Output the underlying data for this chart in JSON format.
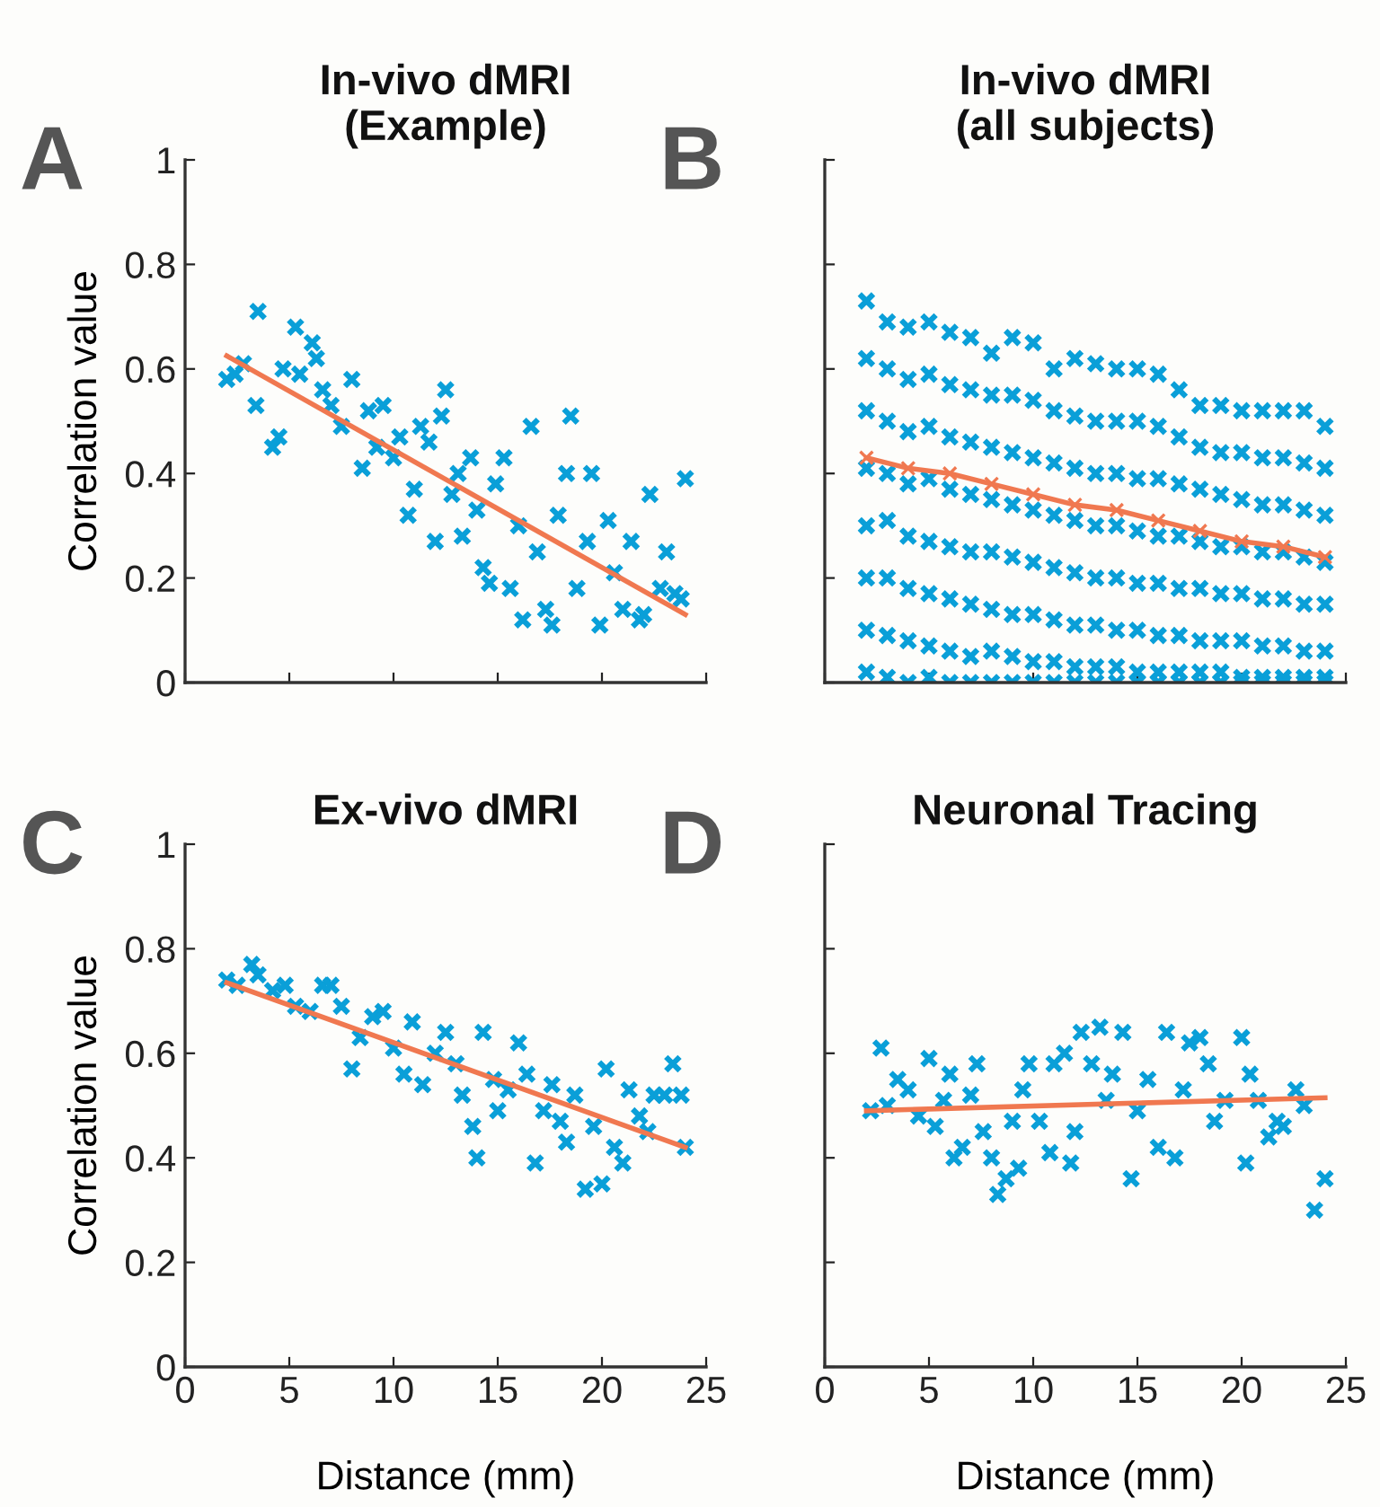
{
  "chart_data": [
    {
      "type": "scatter",
      "title": "In-vivo dMRI\n(Example)",
      "ylabel": "Correlation value",
      "annotations": [
        "A"
      ],
      "xlim": [
        0,
        25
      ],
      "ylim": [
        0,
        1
      ],
      "xticks": [
        0,
        5,
        10,
        15,
        20,
        25
      ],
      "yticks": [
        0,
        0.2,
        0.4,
        0.6,
        0.8,
        1
      ],
      "tick_labels": "y",
      "grid": false,
      "series": [
        {
          "marker": "cross",
          "color": "#0a9fd8",
          "x": [
            2.0,
            2.4,
            2.8,
            3.4,
            3.5,
            4.2,
            4.5,
            4.7,
            5.3,
            5.5,
            6.1,
            6.3,
            6.6,
            7.0,
            7.5,
            8.0,
            8.5,
            8.8,
            9.2,
            9.5,
            10.0,
            10.3,
            10.7,
            11.0,
            11.3,
            11.7,
            12.0,
            12.3,
            12.5,
            12.8,
            13.1,
            13.3,
            13.7,
            14.0,
            14.3,
            14.6,
            14.9,
            15.3,
            15.6,
            16.0,
            16.2,
            16.6,
            16.9,
            17.3,
            17.6,
            17.9,
            18.3,
            18.5,
            18.8,
            19.3,
            19.5,
            19.9,
            20.3,
            20.6,
            21.0,
            21.4,
            21.8,
            22.0,
            22.3,
            22.8,
            23.1,
            23.5,
            24.0,
            23.8
          ],
          "values": [
            0.58,
            0.59,
            0.61,
            0.53,
            0.71,
            0.45,
            0.47,
            0.6,
            0.68,
            0.59,
            0.65,
            0.62,
            0.56,
            0.53,
            0.49,
            0.58,
            0.41,
            0.52,
            0.45,
            0.53,
            0.43,
            0.47,
            0.32,
            0.37,
            0.49,
            0.46,
            0.27,
            0.51,
            0.56,
            0.36,
            0.4,
            0.28,
            0.43,
            0.33,
            0.22,
            0.19,
            0.38,
            0.43,
            0.18,
            0.3,
            0.12,
            0.49,
            0.25,
            0.14,
            0.11,
            0.32,
            0.4,
            0.51,
            0.18,
            0.27,
            0.4,
            0.11,
            0.31,
            0.21,
            0.14,
            0.27,
            0.12,
            0.13,
            0.36,
            0.18,
            0.25,
            0.17,
            0.39,
            0.16
          ]
        },
        {
          "type": "line",
          "marker": "none",
          "color": "#f07850",
          "x": [
            2,
            24
          ],
          "values": [
            0.625,
            0.13
          ]
        }
      ]
    },
    {
      "type": "scatter",
      "title": "In-vivo dMRI\n(all subjects)",
      "annotations": [
        "B"
      ],
      "xlim": [
        0,
        25
      ],
      "ylim": [
        0,
        1
      ],
      "xticks": [
        0,
        5,
        10,
        15,
        20,
        25
      ],
      "yticks": [
        0,
        0.2,
        0.4,
        0.6,
        0.8,
        1
      ],
      "tick_labels": false,
      "grid": false,
      "series": [
        {
          "marker": "cross",
          "color": "#0a9fd8",
          "x": [
            2,
            2,
            2,
            2,
            2,
            2,
            2,
            2,
            3,
            3,
            3,
            3,
            3,
            3,
            3,
            3,
            4,
            4,
            4,
            4,
            4,
            4,
            4,
            4,
            5,
            5,
            5,
            5,
            5,
            5,
            5,
            5,
            6,
            6,
            6,
            6,
            6,
            6,
            6,
            6,
            7,
            7,
            7,
            7,
            7,
            7,
            7,
            7,
            8,
            8,
            8,
            8,
            8,
            8,
            8,
            8,
            9,
            9,
            9,
            9,
            9,
            9,
            9,
            9,
            10,
            10,
            10,
            10,
            10,
            10,
            10,
            10,
            11,
            11,
            11,
            11,
            11,
            11,
            11,
            11,
            12,
            12,
            12,
            12,
            12,
            12,
            12,
            12,
            13,
            13,
            13,
            13,
            13,
            13,
            13,
            13,
            14,
            14,
            14,
            14,
            14,
            14,
            14,
            14,
            15,
            15,
            15,
            15,
            15,
            15,
            15,
            15,
            16,
            16,
            16,
            16,
            16,
            16,
            16,
            16,
            17,
            17,
            17,
            17,
            17,
            17,
            17,
            17,
            18,
            18,
            18,
            18,
            18,
            18,
            18,
            18,
            19,
            19,
            19,
            19,
            19,
            19,
            19,
            19,
            20,
            20,
            20,
            20,
            20,
            20,
            20,
            20,
            21,
            21,
            21,
            21,
            21,
            21,
            21,
            21,
            22,
            22,
            22,
            22,
            22,
            22,
            22,
            22,
            23,
            23,
            23,
            23,
            23,
            23,
            23,
            23,
            24,
            24,
            24,
            24,
            24,
            24,
            24,
            24
          ],
          "values": [
            0.73,
            0.62,
            0.52,
            0.41,
            0.3,
            0.2,
            0.1,
            0.02,
            0.69,
            0.6,
            0.5,
            0.4,
            0.31,
            0.2,
            0.09,
            0.01,
            0.68,
            0.58,
            0.48,
            0.38,
            0.28,
            0.18,
            0.08,
            0.0,
            0.69,
            0.59,
            0.49,
            0.39,
            0.27,
            0.17,
            0.07,
            0.01,
            0.67,
            0.57,
            0.47,
            0.37,
            0.26,
            0.16,
            0.06,
            0.0,
            0.66,
            0.56,
            0.46,
            0.36,
            0.25,
            0.15,
            0.05,
            0.0,
            0.63,
            0.55,
            0.45,
            0.35,
            0.25,
            0.14,
            0.06,
            0.0,
            0.66,
            0.55,
            0.44,
            0.34,
            0.24,
            0.13,
            0.05,
            0.0,
            0.65,
            0.54,
            0.43,
            0.33,
            0.23,
            0.13,
            0.04,
            0.0,
            0.6,
            0.52,
            0.42,
            0.32,
            0.22,
            0.12,
            0.04,
            0.0,
            0.62,
            0.51,
            0.41,
            0.31,
            0.21,
            0.11,
            0.03,
            0.0,
            0.61,
            0.5,
            0.4,
            0.3,
            0.2,
            0.11,
            0.03,
            0.0,
            0.6,
            0.5,
            0.4,
            0.3,
            0.2,
            0.1,
            0.03,
            0.0,
            0.6,
            0.5,
            0.39,
            0.29,
            0.19,
            0.1,
            0.02,
            0.0,
            0.59,
            0.49,
            0.39,
            0.28,
            0.19,
            0.09,
            0.02,
            0.0,
            0.56,
            0.47,
            0.38,
            0.28,
            0.18,
            0.09,
            0.02,
            0.0,
            0.53,
            0.45,
            0.37,
            0.27,
            0.18,
            0.08,
            0.02,
            0.0,
            0.53,
            0.44,
            0.36,
            0.26,
            0.17,
            0.08,
            0.02,
            0.0,
            0.52,
            0.44,
            0.35,
            0.26,
            0.17,
            0.08,
            0.01,
            0.0,
            0.52,
            0.43,
            0.34,
            0.25,
            0.16,
            0.07,
            0.01,
            0.0,
            0.52,
            0.43,
            0.34,
            0.25,
            0.16,
            0.07,
            0.01,
            0.0,
            0.52,
            0.42,
            0.33,
            0.24,
            0.15,
            0.06,
            0.01,
            0.0,
            0.49,
            0.41,
            0.32,
            0.23,
            0.15,
            0.06,
            0.01,
            0.0
          ]
        },
        {
          "type": "line",
          "marker": "cross",
          "color": "#f07850",
          "x": [
            2,
            4,
            6,
            8,
            10,
            12,
            14,
            16,
            18,
            20,
            22,
            24
          ],
          "values": [
            0.43,
            0.41,
            0.4,
            0.38,
            0.36,
            0.34,
            0.33,
            0.31,
            0.29,
            0.27,
            0.26,
            0.24
          ]
        }
      ]
    },
    {
      "type": "scatter",
      "title": "Ex-vivo dMRI",
      "xlabel": "Distance (mm)",
      "ylabel": "Correlation value",
      "annotations": [
        "C"
      ],
      "xlim": [
        0,
        25
      ],
      "ylim": [
        0,
        1
      ],
      "xticks": [
        0,
        5,
        10,
        15,
        20,
        25
      ],
      "yticks": [
        0,
        0.2,
        0.4,
        0.6,
        0.8,
        1
      ],
      "grid": false,
      "series": [
        {
          "marker": "cross",
          "color": "#0a9fd8",
          "x": [
            2.0,
            2.5,
            3.2,
            3.5,
            4.2,
            4.8,
            5.3,
            6.0,
            6.6,
            7.0,
            7.5,
            8.0,
            8.4,
            9.0,
            9.5,
            10.0,
            10.5,
            10.9,
            11.4,
            12.0,
            12.5,
            13.0,
            13.3,
            13.8,
            14.0,
            14.3,
            14.8,
            15.0,
            15.5,
            16.0,
            16.4,
            16.8,
            17.2,
            17.6,
            18.0,
            18.3,
            18.7,
            19.2,
            19.6,
            20.0,
            20.2,
            20.6,
            21.0,
            21.3,
            21.8,
            22.2,
            22.5,
            23.0,
            23.4,
            23.8,
            24.0
          ],
          "values": [
            0.74,
            0.73,
            0.77,
            0.75,
            0.72,
            0.73,
            0.69,
            0.68,
            0.73,
            0.73,
            0.69,
            0.57,
            0.63,
            0.67,
            0.68,
            0.61,
            0.56,
            0.66,
            0.54,
            0.6,
            0.64,
            0.58,
            0.52,
            0.46,
            0.4,
            0.64,
            0.55,
            0.49,
            0.53,
            0.62,
            0.56,
            0.39,
            0.49,
            0.54,
            0.47,
            0.43,
            0.52,
            0.34,
            0.46,
            0.35,
            0.57,
            0.42,
            0.39,
            0.53,
            0.48,
            0.45,
            0.52,
            0.52,
            0.58,
            0.52,
            0.42
          ]
        },
        {
          "type": "line",
          "marker": "none",
          "color": "#f07850",
          "x": [
            2,
            24
          ],
          "values": [
            0.735,
            0.42
          ]
        }
      ]
    },
    {
      "type": "scatter",
      "title": "Neuronal Tracing",
      "xlabel": "Distance (mm)",
      "annotations": [
        "D"
      ],
      "xlim": [
        0,
        25
      ],
      "ylim": [
        0,
        1
      ],
      "xticks": [
        0,
        5,
        10,
        15,
        20,
        25
      ],
      "yticks": [
        0,
        0.2,
        0.4,
        0.6,
        0.8,
        1
      ],
      "tick_labels": "x",
      "grid": false,
      "series": [
        {
          "marker": "cross",
          "color": "#0a9fd8",
          "x": [
            2.2,
            2.7,
            3.0,
            3.5,
            4.0,
            4.5,
            5.0,
            5.3,
            5.7,
            6.0,
            6.2,
            6.6,
            7.0,
            7.3,
            7.6,
            8.0,
            8.3,
            8.7,
            9.0,
            9.3,
            9.5,
            9.8,
            10.3,
            10.8,
            11.0,
            11.5,
            11.8,
            12.0,
            12.3,
            12.8,
            13.2,
            13.5,
            13.8,
            14.3,
            14.7,
            15.0,
            15.5,
            16.0,
            16.4,
            16.8,
            17.2,
            17.5,
            18.0,
            18.4,
            18.7,
            19.2,
            20.0,
            20.2,
            20.4,
            20.8,
            21.3,
            21.7,
            22.0,
            22.6,
            23.0,
            23.5,
            24.0
          ],
          "values": [
            0.49,
            0.61,
            0.5,
            0.55,
            0.53,
            0.48,
            0.59,
            0.46,
            0.51,
            0.56,
            0.4,
            0.42,
            0.52,
            0.58,
            0.45,
            0.4,
            0.33,
            0.36,
            0.47,
            0.38,
            0.53,
            0.58,
            0.47,
            0.41,
            0.58,
            0.6,
            0.39,
            0.45,
            0.64,
            0.58,
            0.65,
            0.51,
            0.56,
            0.64,
            0.36,
            0.49,
            0.55,
            0.42,
            0.64,
            0.4,
            0.53,
            0.62,
            0.63,
            0.58,
            0.47,
            0.51,
            0.63,
            0.39,
            0.56,
            0.51,
            0.44,
            0.47,
            0.46,
            0.53,
            0.5,
            0.3,
            0.36
          ]
        },
        {
          "type": "line",
          "marker": "none",
          "color": "#f07850",
          "x": [
            2,
            24
          ],
          "values": [
            0.49,
            0.515
          ]
        }
      ]
    }
  ]
}
